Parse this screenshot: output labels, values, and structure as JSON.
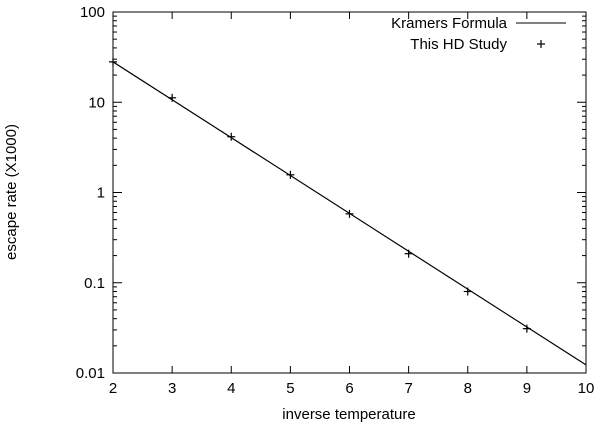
{
  "chart_data": {
    "type": "line",
    "title": "",
    "xlabel": "inverse temperature",
    "ylabel": "escape rate (X1000)",
    "xlim": [
      2,
      10
    ],
    "ylim": [
      0.01,
      100
    ],
    "yscale": "log",
    "grid": false,
    "legend_position": "top-right",
    "x_ticks": [
      2,
      3,
      4,
      5,
      6,
      7,
      8,
      9,
      10
    ],
    "x_tick_labels": [
      "2",
      "3",
      "4",
      "5",
      "6",
      "7",
      "8",
      "9",
      "10"
    ],
    "y_ticks": [
      0.01,
      0.1,
      1,
      10,
      100
    ],
    "y_tick_labels": [
      "0.01",
      "0.1",
      "1",
      "10",
      "100"
    ],
    "series": [
      {
        "name": "Kramers Formula",
        "style": "line",
        "color": "#000000",
        "x": [
          2,
          10
        ],
        "y": [
          28,
          0.0123
        ]
      },
      {
        "name": "This HD Study",
        "style": "points",
        "marker": "+",
        "color": "#000000",
        "x": [
          2,
          3,
          4,
          5,
          6,
          7,
          8,
          9
        ],
        "y": [
          28,
          11.2,
          4.15,
          1.57,
          0.58,
          0.21,
          0.08,
          0.031
        ]
      }
    ]
  }
}
